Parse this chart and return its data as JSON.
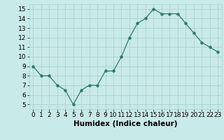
{
  "x": [
    0,
    1,
    2,
    3,
    4,
    5,
    6,
    7,
    8,
    9,
    10,
    11,
    12,
    13,
    14,
    15,
    16,
    17,
    18,
    19,
    20,
    21,
    22,
    23
  ],
  "y": [
    9.0,
    8.0,
    8.0,
    7.0,
    6.5,
    5.0,
    6.5,
    7.0,
    7.0,
    8.5,
    8.5,
    10.0,
    12.0,
    13.5,
    14.0,
    15.0,
    14.5,
    14.5,
    14.5,
    13.5,
    12.5,
    11.5,
    11.0,
    10.5
  ],
  "xlim": [
    -0.5,
    23.5
  ],
  "ylim": [
    4.5,
    15.5
  ],
  "yticks": [
    5,
    6,
    7,
    8,
    9,
    10,
    11,
    12,
    13,
    14,
    15
  ],
  "xticks": [
    0,
    1,
    2,
    3,
    4,
    5,
    6,
    7,
    8,
    9,
    10,
    11,
    12,
    13,
    14,
    15,
    16,
    17,
    18,
    19,
    20,
    21,
    22,
    23
  ],
  "xlabel": "Humidex (Indice chaleur)",
  "line_color": "#2d7a6e",
  "marker_color": "#2d7a6e",
  "bg_color": "#c8eae8",
  "grid_color": "#a8d4d0",
  "tick_fontsize": 6.5,
  "label_fontsize": 7.5
}
